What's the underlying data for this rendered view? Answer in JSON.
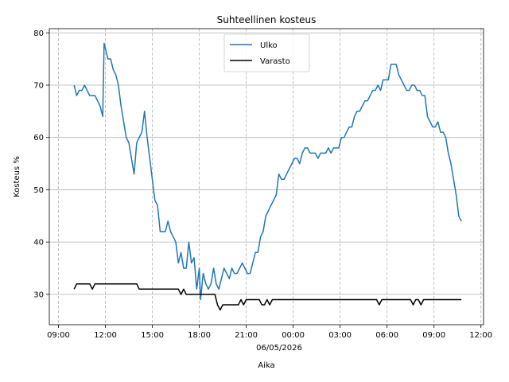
{
  "chart_data": {
    "type": "line",
    "title": "Suhteellinen kosteus",
    "xlabel": "Aika",
    "ylabel": "Kosteus %",
    "date_label": "06/05/2026",
    "x_tick_labels": [
      "09:00",
      "12:00",
      "15:00",
      "18:00",
      "21:00",
      "00:00",
      "03:00",
      "06:00",
      "09:00",
      "12:00"
    ],
    "x_tick_datetimes": [
      "2026-05-05 09:00",
      "2026-05-05 12:00",
      "2026-05-05 15:00",
      "2026-05-05 18:00",
      "2026-05-05 21:00",
      "2026-05-06 00:00",
      "2026-05-06 03:00",
      "2026-05-06 06:00",
      "2026-05-06 09:00",
      "2026-05-06 12:00"
    ],
    "y_ticks": [
      30,
      40,
      50,
      60,
      70,
      80
    ],
    "xlim": [
      "2026-05-05 08:25",
      "2026-05-06 12:10"
    ],
    "ylim": [
      24.2,
      80.8
    ],
    "grid": {
      "x": "dashed",
      "y": "solid"
    },
    "legend_position": "top-center",
    "series": [
      {
        "name": "Ulko",
        "color": "#1f77b4",
        "points": [
          [
            "2026-05-05 10:00",
            70
          ],
          [
            "2026-05-05 10:10",
            68
          ],
          [
            "2026-05-05 10:20",
            69
          ],
          [
            "2026-05-05 10:30",
            69
          ],
          [
            "2026-05-05 10:40",
            70
          ],
          [
            "2026-05-05 10:50",
            69
          ],
          [
            "2026-05-05 11:00",
            68
          ],
          [
            "2026-05-05 11:10",
            68
          ],
          [
            "2026-05-05 11:20",
            68
          ],
          [
            "2026-05-05 11:30",
            67
          ],
          [
            "2026-05-05 11:40",
            66
          ],
          [
            "2026-05-05 11:50",
            64
          ],
          [
            "2026-05-05 11:55",
            78
          ],
          [
            "2026-05-05 12:05",
            76
          ],
          [
            "2026-05-05 12:10",
            75
          ],
          [
            "2026-05-05 12:20",
            75
          ],
          [
            "2026-05-05 12:30",
            73
          ],
          [
            "2026-05-05 12:40",
            72
          ],
          [
            "2026-05-05 12:50",
            70
          ],
          [
            "2026-05-05 13:00",
            66
          ],
          [
            "2026-05-05 13:10",
            63
          ],
          [
            "2026-05-05 13:20",
            60
          ],
          [
            "2026-05-05 13:30",
            59
          ],
          [
            "2026-05-05 13:40",
            56
          ],
          [
            "2026-05-05 13:50",
            53
          ],
          [
            "2026-05-05 14:00",
            59
          ],
          [
            "2026-05-05 14:10",
            60
          ],
          [
            "2026-05-05 14:20",
            61
          ],
          [
            "2026-05-05 14:30",
            65
          ],
          [
            "2026-05-05 14:40",
            60
          ],
          [
            "2026-05-05 14:50",
            56
          ],
          [
            "2026-05-05 15:00",
            52
          ],
          [
            "2026-05-05 15:10",
            48
          ],
          [
            "2026-05-05 15:20",
            47
          ],
          [
            "2026-05-05 15:30",
            42
          ],
          [
            "2026-05-05 15:40",
            42
          ],
          [
            "2026-05-05 15:50",
            42
          ],
          [
            "2026-05-05 16:00",
            44
          ],
          [
            "2026-05-05 16:10",
            42
          ],
          [
            "2026-05-05 16:20",
            41
          ],
          [
            "2026-05-05 16:30",
            40
          ],
          [
            "2026-05-05 16:40",
            36
          ],
          [
            "2026-05-05 16:50",
            38
          ],
          [
            "2026-05-05 17:00",
            35
          ],
          [
            "2026-05-05 17:10",
            35
          ],
          [
            "2026-05-05 17:20",
            40
          ],
          [
            "2026-05-05 17:30",
            36
          ],
          [
            "2026-05-05 17:40",
            37
          ],
          [
            "2026-05-05 17:50",
            31
          ],
          [
            "2026-05-05 18:00",
            35
          ],
          [
            "2026-05-05 18:05",
            29
          ],
          [
            "2026-05-05 18:15",
            34
          ],
          [
            "2026-05-05 18:25",
            32
          ],
          [
            "2026-05-05 18:35",
            31
          ],
          [
            "2026-05-05 18:45",
            32
          ],
          [
            "2026-05-05 18:55",
            35
          ],
          [
            "2026-05-05 19:05",
            32
          ],
          [
            "2026-05-05 19:15",
            31
          ],
          [
            "2026-05-05 19:25",
            33
          ],
          [
            "2026-05-05 19:35",
            35
          ],
          [
            "2026-05-05 19:45",
            34
          ],
          [
            "2026-05-05 19:55",
            33
          ],
          [
            "2026-05-05 20:05",
            35
          ],
          [
            "2026-05-05 20:15",
            34
          ],
          [
            "2026-05-05 20:25",
            34
          ],
          [
            "2026-05-05 20:35",
            35
          ],
          [
            "2026-05-05 20:45",
            36
          ],
          [
            "2026-05-05 20:55",
            35
          ],
          [
            "2026-05-05 21:05",
            34
          ],
          [
            "2026-05-05 21:15",
            34
          ],
          [
            "2026-05-05 21:25",
            36
          ],
          [
            "2026-05-05 21:35",
            38
          ],
          [
            "2026-05-05 21:45",
            38
          ],
          [
            "2026-05-05 21:55",
            41
          ],
          [
            "2026-05-05 22:05",
            42
          ],
          [
            "2026-05-05 22:15",
            45
          ],
          [
            "2026-05-05 22:25",
            46
          ],
          [
            "2026-05-05 22:35",
            47
          ],
          [
            "2026-05-05 22:45",
            48
          ],
          [
            "2026-05-05 22:55",
            49
          ],
          [
            "2026-05-05 23:05",
            53
          ],
          [
            "2026-05-05 23:15",
            52
          ],
          [
            "2026-05-05 23:25",
            52
          ],
          [
            "2026-05-05 23:35",
            53
          ],
          [
            "2026-05-05 23:45",
            54
          ],
          [
            "2026-05-05 23:55",
            55
          ],
          [
            "2026-05-06 00:05",
            56
          ],
          [
            "2026-05-06 00:15",
            56
          ],
          [
            "2026-05-06 00:25",
            55
          ],
          [
            "2026-05-06 00:35",
            57
          ],
          [
            "2026-05-06 00:45",
            58
          ],
          [
            "2026-05-06 00:55",
            58
          ],
          [
            "2026-05-06 01:05",
            57
          ],
          [
            "2026-05-06 01:15",
            57
          ],
          [
            "2026-05-06 01:25",
            57
          ],
          [
            "2026-05-06 01:35",
            56
          ],
          [
            "2026-05-06 01:45",
            57
          ],
          [
            "2026-05-06 01:55",
            57
          ],
          [
            "2026-05-06 02:05",
            57
          ],
          [
            "2026-05-06 02:15",
            58
          ],
          [
            "2026-05-06 02:25",
            57
          ],
          [
            "2026-05-06 02:35",
            58
          ],
          [
            "2026-05-06 02:45",
            58
          ],
          [
            "2026-05-06 02:55",
            58
          ],
          [
            "2026-05-06 03:05",
            60
          ],
          [
            "2026-05-06 03:15",
            60
          ],
          [
            "2026-05-06 03:25",
            61
          ],
          [
            "2026-05-06 03:35",
            62
          ],
          [
            "2026-05-06 03:45",
            62
          ],
          [
            "2026-05-06 03:55",
            64
          ],
          [
            "2026-05-06 04:05",
            65
          ],
          [
            "2026-05-06 04:15",
            65
          ],
          [
            "2026-05-06 04:25",
            66
          ],
          [
            "2026-05-06 04:35",
            67
          ],
          [
            "2026-05-06 04:45",
            67
          ],
          [
            "2026-05-06 04:55",
            68
          ],
          [
            "2026-05-06 05:05",
            69
          ],
          [
            "2026-05-06 05:15",
            69
          ],
          [
            "2026-05-06 05:25",
            70
          ],
          [
            "2026-05-06 05:35",
            69
          ],
          [
            "2026-05-06 05:45",
            71
          ],
          [
            "2026-05-06 05:55",
            71
          ],
          [
            "2026-05-06 06:05",
            71
          ],
          [
            "2026-05-06 06:15",
            74
          ],
          [
            "2026-05-06 06:25",
            74
          ],
          [
            "2026-05-06 06:35",
            74
          ],
          [
            "2026-05-06 06:45",
            72
          ],
          [
            "2026-05-06 06:55",
            71
          ],
          [
            "2026-05-06 07:05",
            70
          ],
          [
            "2026-05-06 07:15",
            69
          ],
          [
            "2026-05-06 07:25",
            69
          ],
          [
            "2026-05-06 07:35",
            70
          ],
          [
            "2026-05-06 07:45",
            70
          ],
          [
            "2026-05-06 07:55",
            69
          ],
          [
            "2026-05-06 08:05",
            69
          ],
          [
            "2026-05-06 08:15",
            68
          ],
          [
            "2026-05-06 08:25",
            68
          ],
          [
            "2026-05-06 08:35",
            64
          ],
          [
            "2026-05-06 08:45",
            63
          ],
          [
            "2026-05-06 08:55",
            62
          ],
          [
            "2026-05-06 09:05",
            62
          ],
          [
            "2026-05-06 09:15",
            63
          ],
          [
            "2026-05-06 09:25",
            61
          ],
          [
            "2026-05-06 09:35",
            61
          ],
          [
            "2026-05-06 09:45",
            60
          ],
          [
            "2026-05-06 09:55",
            57
          ],
          [
            "2026-05-06 10:05",
            55
          ],
          [
            "2026-05-06 10:15",
            52
          ],
          [
            "2026-05-06 10:25",
            49
          ],
          [
            "2026-05-06 10:35",
            45
          ],
          [
            "2026-05-06 10:45",
            44
          ]
        ]
      },
      {
        "name": "Varasto",
        "color": "#000000",
        "points": [
          [
            "2026-05-05 10:00",
            31
          ],
          [
            "2026-05-05 10:10",
            32
          ],
          [
            "2026-05-05 10:20",
            32
          ],
          [
            "2026-05-05 10:30",
            32
          ],
          [
            "2026-05-05 10:40",
            32
          ],
          [
            "2026-05-05 10:50",
            32
          ],
          [
            "2026-05-05 11:00",
            32
          ],
          [
            "2026-05-05 11:10",
            31
          ],
          [
            "2026-05-05 11:20",
            32
          ],
          [
            "2026-05-05 11:30",
            32
          ],
          [
            "2026-05-05 11:40",
            32
          ],
          [
            "2026-05-05 12:00",
            32
          ],
          [
            "2026-05-05 12:30",
            32
          ],
          [
            "2026-05-05 13:00",
            32
          ],
          [
            "2026-05-05 13:30",
            32
          ],
          [
            "2026-05-05 14:00",
            32
          ],
          [
            "2026-05-05 14:10",
            31
          ],
          [
            "2026-05-05 14:30",
            31
          ],
          [
            "2026-05-05 15:00",
            31
          ],
          [
            "2026-05-05 15:30",
            31
          ],
          [
            "2026-05-05 16:00",
            31
          ],
          [
            "2026-05-05 16:30",
            31
          ],
          [
            "2026-05-05 16:40",
            31
          ],
          [
            "2026-05-05 16:50",
            30
          ],
          [
            "2026-05-05 17:00",
            31
          ],
          [
            "2026-05-05 17:10",
            30
          ],
          [
            "2026-05-05 17:30",
            30
          ],
          [
            "2026-05-05 18:00",
            30
          ],
          [
            "2026-05-05 18:30",
            30
          ],
          [
            "2026-05-05 19:00",
            30
          ],
          [
            "2026-05-05 19:10",
            28
          ],
          [
            "2026-05-05 19:20",
            27
          ],
          [
            "2026-05-05 19:30",
            28
          ],
          [
            "2026-05-05 19:50",
            28
          ],
          [
            "2026-05-05 20:10",
            28
          ],
          [
            "2026-05-05 20:30",
            28
          ],
          [
            "2026-05-05 20:40",
            29
          ],
          [
            "2026-05-05 20:50",
            28
          ],
          [
            "2026-05-05 21:00",
            29
          ],
          [
            "2026-05-05 21:30",
            29
          ],
          [
            "2026-05-05 21:50",
            29
          ],
          [
            "2026-05-05 22:00",
            28
          ],
          [
            "2026-05-05 22:10",
            28
          ],
          [
            "2026-05-05 22:20",
            29
          ],
          [
            "2026-05-05 22:30",
            28
          ],
          [
            "2026-05-05 22:40",
            29
          ],
          [
            "2026-05-05 23:00",
            29
          ],
          [
            "2026-05-06 00:00",
            29
          ],
          [
            "2026-05-06 01:00",
            29
          ],
          [
            "2026-05-06 02:00",
            29
          ],
          [
            "2026-05-06 03:00",
            29
          ],
          [
            "2026-05-06 04:00",
            29
          ],
          [
            "2026-05-06 05:00",
            29
          ],
          [
            "2026-05-06 05:20",
            29
          ],
          [
            "2026-05-06 05:30",
            28
          ],
          [
            "2026-05-06 05:40",
            29
          ],
          [
            "2026-05-06 06:00",
            29
          ],
          [
            "2026-05-06 07:00",
            29
          ],
          [
            "2026-05-06 07:30",
            29
          ],
          [
            "2026-05-06 07:40",
            28
          ],
          [
            "2026-05-06 07:50",
            29
          ],
          [
            "2026-05-06 08:00",
            29
          ],
          [
            "2026-05-06 08:10",
            28
          ],
          [
            "2026-05-06 08:20",
            29
          ],
          [
            "2026-05-06 09:00",
            29
          ],
          [
            "2026-05-06 10:00",
            29
          ],
          [
            "2026-05-06 10:45",
            29
          ]
        ]
      }
    ]
  }
}
